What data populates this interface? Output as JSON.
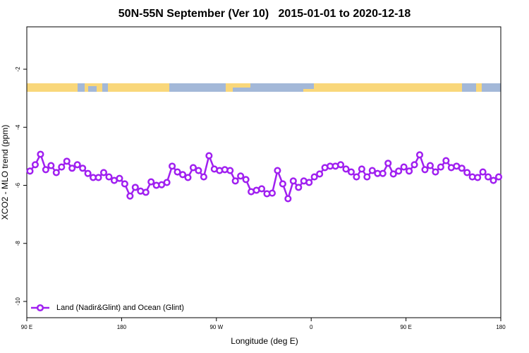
{
  "chart_data": {
    "type": "line",
    "title": "50N-55N September (Ver 10)   2015-01-01 to 2020-12-18",
    "xlabel": "Longitude (deg E)",
    "ylabel": "XCO2 - MLO trend (ppm)",
    "xlim": [
      90,
      540
    ],
    "ylim": [
      -10.56,
      -0.54
    ],
    "xticks": [
      {
        "value": 90,
        "label": "90 E"
      },
      180,
      {
        "value": 270,
        "label": "90 W"
      },
      {
        "value": 360,
        "label": "0"
      },
      {
        "value": 450,
        "label": "90 E"
      },
      {
        "value": 540,
        "label": "180"
      }
    ],
    "yticks": [
      -2,
      -4,
      -6,
      -8,
      -10
    ],
    "legend": "bottom-left",
    "x": [
      93,
      98,
      103,
      108,
      113,
      118,
      123,
      128,
      133,
      138,
      143,
      148,
      153,
      158,
      163,
      168,
      173,
      178,
      183,
      188,
      193,
      198,
      203,
      208,
      213,
      218,
      223,
      228,
      233,
      238,
      243,
      248,
      253,
      258,
      263,
      268,
      273,
      278,
      283,
      288,
      293,
      298,
      303,
      308,
      313,
      318,
      323,
      328,
      333,
      338,
      343,
      348,
      353,
      358,
      363,
      368,
      373,
      378,
      383,
      388,
      393,
      398,
      403,
      408,
      413,
      418,
      423,
      428,
      433,
      438,
      443,
      448,
      453,
      458,
      463,
      468,
      473,
      478,
      483,
      488,
      493,
      498,
      503,
      508,
      513,
      518,
      523,
      528,
      533,
      538
    ],
    "series": [
      {
        "name": "Land (Nadir&Glint) and Ocean (Glint)",
        "color": "#a020f0",
        "values": [
          -5.51,
          -5.29,
          -4.93,
          -5.46,
          -5.32,
          -5.56,
          -5.37,
          -5.17,
          -5.41,
          -5.29,
          -5.41,
          -5.59,
          -5.73,
          -5.73,
          -5.56,
          -5.71,
          -5.83,
          -5.76,
          -5.95,
          -6.37,
          -6.07,
          -6.2,
          -6.24,
          -5.88,
          -6.0,
          -5.98,
          -5.9,
          -5.34,
          -5.54,
          -5.63,
          -5.73,
          -5.39,
          -5.49,
          -5.71,
          -4.98,
          -5.44,
          -5.49,
          -5.46,
          -5.49,
          -5.85,
          -5.68,
          -5.8,
          -6.22,
          -6.17,
          -6.12,
          -6.29,
          -6.27,
          -5.49,
          -5.95,
          -6.46,
          -5.85,
          -6.07,
          -5.85,
          -5.9,
          -5.71,
          -5.61,
          -5.39,
          -5.34,
          -5.34,
          -5.29,
          -5.44,
          -5.54,
          -5.71,
          -5.44,
          -5.71,
          -5.49,
          -5.59,
          -5.59,
          -5.24,
          -5.61,
          -5.51,
          -5.37,
          -5.51,
          -5.29,
          -4.95,
          -5.46,
          -5.32,
          -5.54,
          -5.37,
          -5.15,
          -5.39,
          -5.34,
          -5.41,
          -5.56,
          -5.71,
          -5.73,
          -5.54,
          -5.71,
          -5.83,
          -5.71
        ]
      }
    ]
  }
}
